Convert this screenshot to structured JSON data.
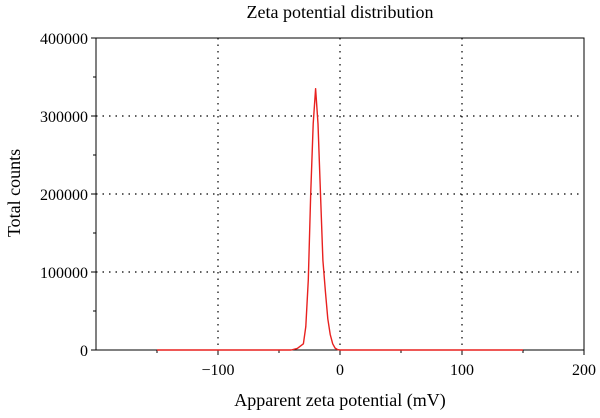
{
  "chart_data": {
    "type": "line",
    "title": "Zeta potential distribution",
    "xlabel": "Apparent zeta potential (mV)",
    "ylabel": "Total counts",
    "xlim": [
      -200,
      200
    ],
    "ylim": [
      0,
      400000
    ],
    "x_ticks": [
      -100,
      0,
      100,
      200
    ],
    "x_tick_labels": [
      "−100",
      "0",
      "100",
      "200"
    ],
    "y_ticks": [
      0,
      100000,
      200000,
      300000,
      400000
    ],
    "y_tick_labels": [
      "0",
      "100000",
      "200000",
      "300000",
      "400000"
    ],
    "grid": "dotted",
    "series": [
      {
        "color": "#e8211f",
        "x": [
          -150,
          -40,
          -35,
          -30,
          -28,
          -26,
          -24,
          -22,
          -20,
          -18,
          -16,
          -14,
          -12,
          -10,
          -8,
          -6,
          -4,
          -2,
          0,
          10,
          50,
          150
        ],
        "y": [
          0,
          0,
          2000,
          8000,
          30000,
          90000,
          200000,
          290000,
          335000,
          290000,
          200000,
          115000,
          75000,
          40000,
          20000,
          8000,
          2500,
          500,
          0,
          0,
          0,
          0
        ]
      }
    ]
  }
}
